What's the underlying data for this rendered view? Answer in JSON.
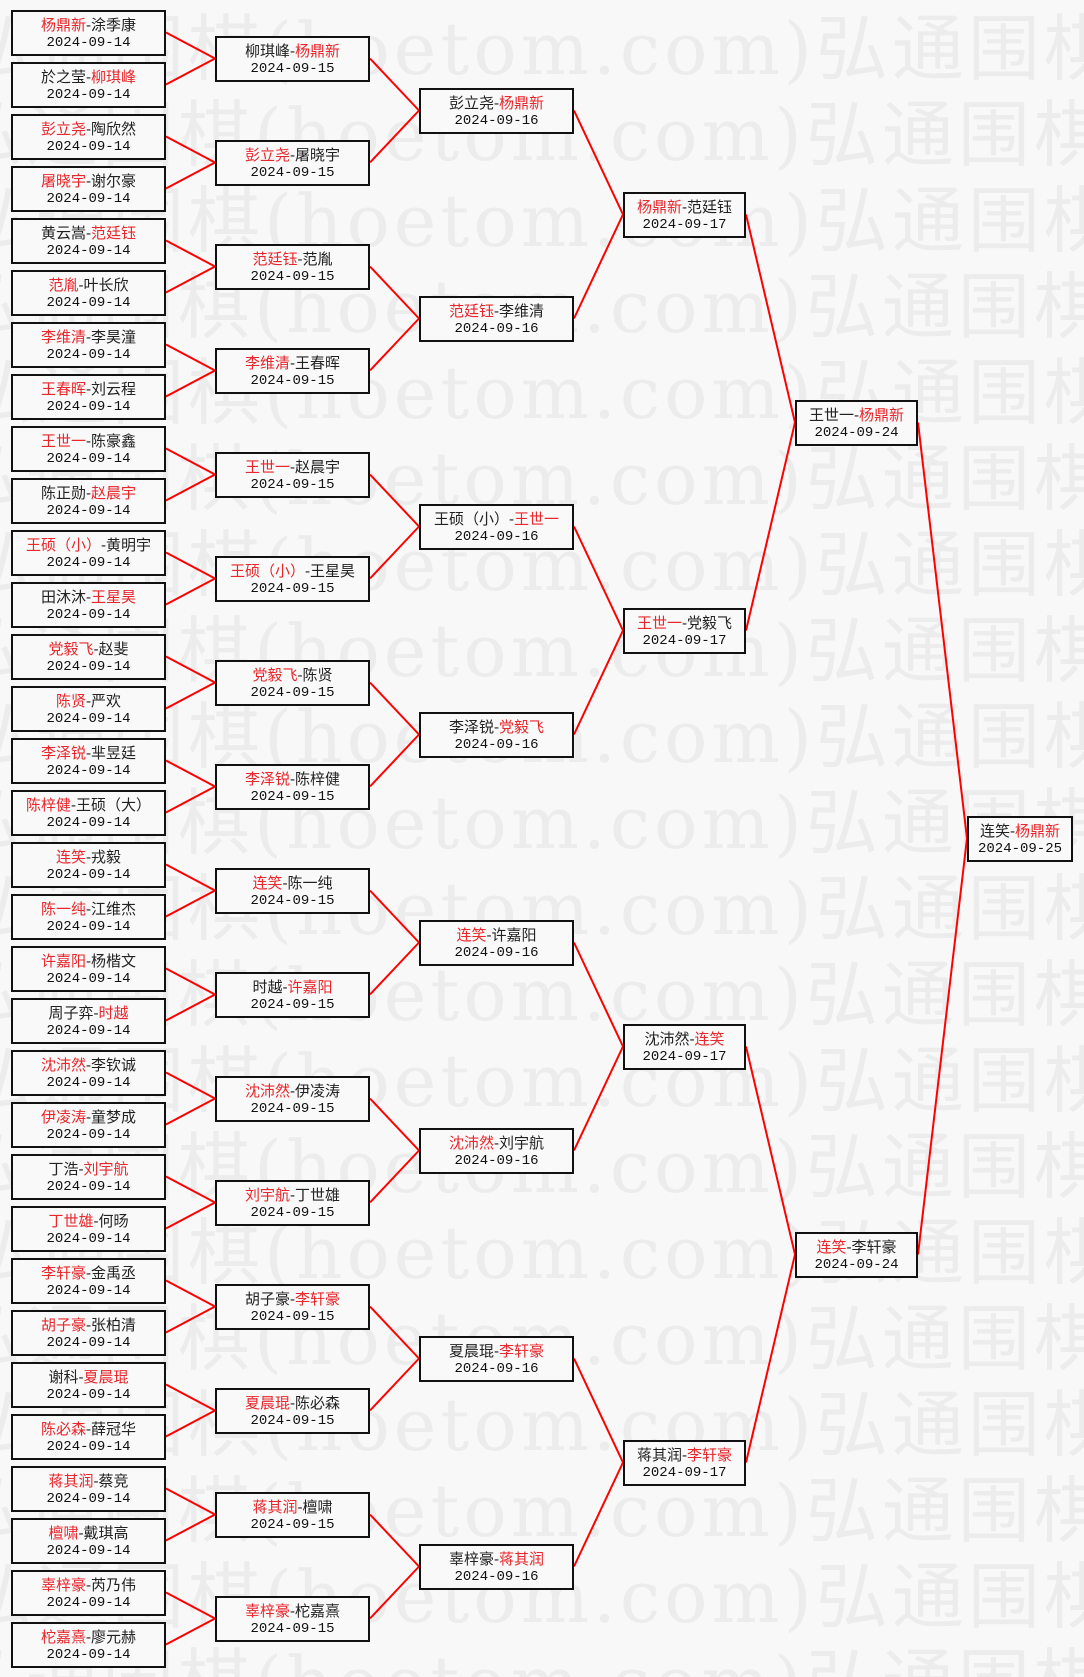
{
  "watermark": "弘通围棋(hoetom.com)",
  "colors": {
    "winner": "#e8262b",
    "connector": "#ff0000",
    "border": "#111111"
  },
  "rounds": [
    {
      "date": "2024-09-14",
      "matches": [
        {
          "a": "杨鼎新",
          "b": "涂季康",
          "winner": "a"
        },
        {
          "a": "於之莹",
          "b": "柳琪峰",
          "winner": "b"
        },
        {
          "a": "彭立尧",
          "b": "陶欣然",
          "winner": "a"
        },
        {
          "a": "屠晓宇",
          "b": "谢尔豪",
          "winner": "a"
        },
        {
          "a": "黄云嵩",
          "b": "范廷钰",
          "winner": "b"
        },
        {
          "a": "范胤",
          "b": "叶长欣",
          "winner": "a"
        },
        {
          "a": "李维清",
          "b": "李昊潼",
          "winner": "a"
        },
        {
          "a": "王春晖",
          "b": "刘云程",
          "winner": "a"
        },
        {
          "a": "王世一",
          "b": "陈豪鑫",
          "winner": "a"
        },
        {
          "a": "陈正勋",
          "b": "赵晨宇",
          "winner": "b"
        },
        {
          "a": "王硕（小）",
          "b": "黄明宇",
          "winner": "a"
        },
        {
          "a": "田沐沐",
          "b": "王星昊",
          "winner": "b"
        },
        {
          "a": "党毅飞",
          "b": "赵斐",
          "winner": "a"
        },
        {
          "a": "陈贤",
          "b": "严欢",
          "winner": "a"
        },
        {
          "a": "李泽锐",
          "b": "芈昱廷",
          "winner": "a"
        },
        {
          "a": "陈梓健",
          "b": "王硕（大）",
          "winner": "a"
        },
        {
          "a": "连笑",
          "b": "戎毅",
          "winner": "a"
        },
        {
          "a": "陈一纯",
          "b": "江维杰",
          "winner": "a"
        },
        {
          "a": "许嘉阳",
          "b": "杨楷文",
          "winner": "a"
        },
        {
          "a": "周子弈",
          "b": "时越",
          "winner": "b"
        },
        {
          "a": "沈沛然",
          "b": "李钦诚",
          "winner": "a"
        },
        {
          "a": "伊凌涛",
          "b": "童梦成",
          "winner": "a"
        },
        {
          "a": "丁浩",
          "b": "刘宇航",
          "winner": "b"
        },
        {
          "a": "丁世雄",
          "b": "何旸",
          "winner": "a"
        },
        {
          "a": "李轩豪",
          "b": "金禹丞",
          "winner": "a"
        },
        {
          "a": "胡子豪",
          "b": "张柏清",
          "winner": "a"
        },
        {
          "a": "谢科",
          "b": "夏晨琨",
          "winner": "b"
        },
        {
          "a": "陈必森",
          "b": "薛冠华",
          "winner": "a"
        },
        {
          "a": "蒋其润",
          "b": "蔡竞",
          "winner": "a"
        },
        {
          "a": "檀啸",
          "b": "戴琪高",
          "winner": "a"
        },
        {
          "a": "辜梓豪",
          "b": "芮乃伟",
          "winner": "a"
        },
        {
          "a": "柁嘉熹",
          "b": "廖元赫",
          "winner": "a"
        }
      ]
    },
    {
      "date": "2024-09-15",
      "matches": [
        {
          "a": "柳琪峰",
          "b": "杨鼎新",
          "winner": "b"
        },
        {
          "a": "彭立尧",
          "b": "屠晓宇",
          "winner": "a"
        },
        {
          "a": "范廷钰",
          "b": "范胤",
          "winner": "a"
        },
        {
          "a": "李维清",
          "b": "王春晖",
          "winner": "a"
        },
        {
          "a": "王世一",
          "b": "赵晨宇",
          "winner": "a"
        },
        {
          "a": "王硕（小）",
          "b": "王星昊",
          "winner": "a"
        },
        {
          "a": "党毅飞",
          "b": "陈贤",
          "winner": "a"
        },
        {
          "a": "李泽锐",
          "b": "陈梓健",
          "winner": "a"
        },
        {
          "a": "连笑",
          "b": "陈一纯",
          "winner": "a"
        },
        {
          "a": "时越",
          "b": "许嘉阳",
          "winner": "b"
        },
        {
          "a": "沈沛然",
          "b": "伊凌涛",
          "winner": "a"
        },
        {
          "a": "刘宇航",
          "b": "丁世雄",
          "winner": "a"
        },
        {
          "a": "胡子豪",
          "b": "李轩豪",
          "winner": "b"
        },
        {
          "a": "夏晨琨",
          "b": "陈必森",
          "winner": "a"
        },
        {
          "a": "蒋其润",
          "b": "檀啸",
          "winner": "a"
        },
        {
          "a": "辜梓豪",
          "b": "柁嘉熹",
          "winner": "a"
        }
      ]
    },
    {
      "date": "2024-09-16",
      "matches": [
        {
          "a": "彭立尧",
          "b": "杨鼎新",
          "winner": "b"
        },
        {
          "a": "范廷钰",
          "b": "李维清",
          "winner": "a"
        },
        {
          "a": "王硕（小）",
          "b": "王世一",
          "winner": "b"
        },
        {
          "a": "李泽锐",
          "b": "党毅飞",
          "winner": "b"
        },
        {
          "a": "连笑",
          "b": "许嘉阳",
          "winner": "a"
        },
        {
          "a": "沈沛然",
          "b": "刘宇航",
          "winner": "a"
        },
        {
          "a": "夏晨琨",
          "b": "李轩豪",
          "winner": "b"
        },
        {
          "a": "辜梓豪",
          "b": "蒋其润",
          "winner": "b"
        }
      ]
    },
    {
      "date": "2024-09-17",
      "matches": [
        {
          "a": "杨鼎新",
          "b": "范廷钰",
          "winner": "a"
        },
        {
          "a": "王世一",
          "b": "党毅飞",
          "winner": "a"
        },
        {
          "a": "沈沛然",
          "b": "连笑",
          "winner": "b"
        },
        {
          "a": "蒋其润",
          "b": "李轩豪",
          "winner": "b"
        }
      ]
    },
    {
      "date": "2024-09-24",
      "matches": [
        {
          "a": "王世一",
          "b": "杨鼎新",
          "winner": "b"
        },
        {
          "a": "连笑",
          "b": "李轩豪",
          "winner": "a"
        }
      ]
    },
    {
      "date": "2024-09-25",
      "matches": [
        {
          "a": "连笑",
          "b": "杨鼎新",
          "winner": "b"
        }
      ]
    }
  ]
}
